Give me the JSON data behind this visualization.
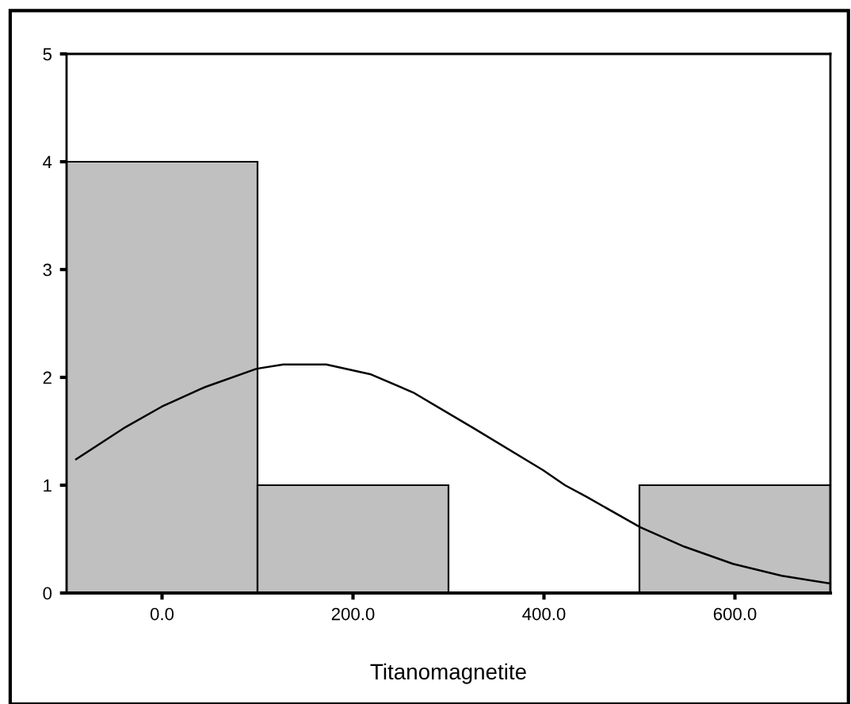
{
  "chart_data": {
    "type": "histogram",
    "xlabel": "Titanomagnetite",
    "bins": [
      -100,
      100,
      300,
      500,
      700
    ],
    "values": [
      4,
      1,
      0,
      1
    ],
    "color": "#c0c0c0",
    "series": [
      {
        "type": "line",
        "color": "#000000",
        "x": [
          -90,
          -38,
          0,
          45,
          99,
          127,
          172,
          218,
          263,
          326,
          399,
          422,
          445,
          501,
          547,
          598,
          649,
          699
        ],
        "values": [
          1.24,
          1.54,
          1.73,
          1.91,
          2.08,
          2.12,
          2.12,
          2.03,
          1.86,
          1.53,
          1.14,
          1.0,
          0.89,
          0.61,
          0.43,
          0.27,
          0.16,
          0.09
        ]
      }
    ],
    "xlim": [
      -100,
      700
    ],
    "xticks": [
      {
        "value": 0,
        "label": "0.0"
      },
      {
        "value": 200,
        "label": "200.0"
      },
      {
        "value": 400,
        "label": "400.0"
      },
      {
        "value": 600,
        "label": "600.0"
      }
    ],
    "ylim": [
      0,
      5
    ],
    "yticks": [
      0,
      1,
      2,
      3,
      4,
      5
    ],
    "grid": false,
    "legend": false
  }
}
